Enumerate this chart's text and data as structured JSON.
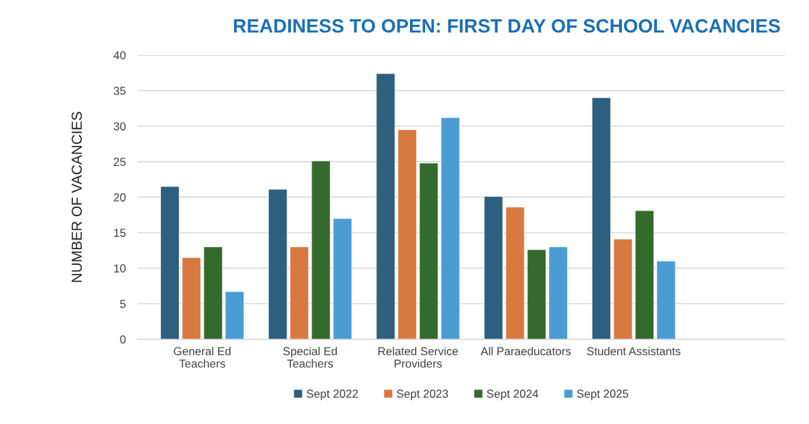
{
  "chart_data": {
    "type": "bar",
    "title": "READINESS TO OPEN: FIRST DAY OF SCHOOL VACANCIES",
    "ylabel": "NUMBER OF VACANCIES",
    "categories": [
      "General Ed\nTeachers",
      "Special Ed\nTeachers",
      "Related Service\nProviders",
      "All Paraeducators",
      "Student Assistants",
      null
    ],
    "series": [
      {
        "name": "Sept 2022",
        "color": "#2e5f7f",
        "values": [
          21.5,
          21.1,
          37.4,
          20.1,
          34.0,
          null
        ]
      },
      {
        "name": "Sept 2023",
        "color": "#d97942",
        "values": [
          11.5,
          13.0,
          29.5,
          18.6,
          14.1,
          null
        ]
      },
      {
        "name": "Sept 2024",
        "color": "#356a2d",
        "values": [
          13.0,
          25.1,
          24.8,
          12.6,
          18.1,
          null
        ]
      },
      {
        "name": "Sept 2025",
        "color": "#4a9dd3",
        "values": [
          6.7,
          17.0,
          31.2,
          13.0,
          11.0,
          null
        ]
      }
    ],
    "ylim": [
      0,
      40
    ],
    "yticks": [
      0,
      5,
      10,
      15,
      20,
      25,
      30,
      35,
      40
    ],
    "grid": "y",
    "legend": "bottom"
  }
}
